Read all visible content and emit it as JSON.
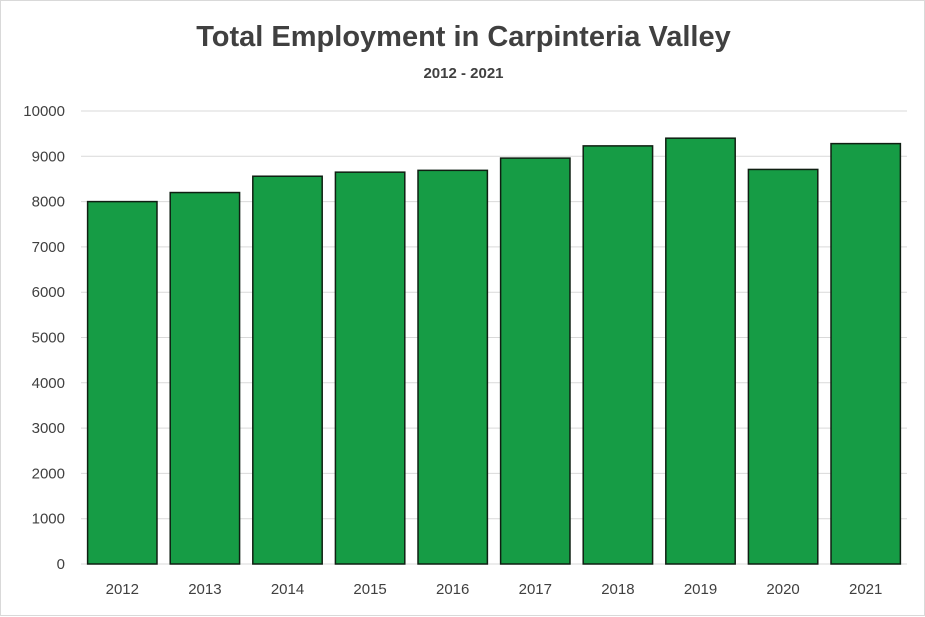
{
  "chart_data": {
    "type": "bar",
    "title": "Total Employment in Carpinteria Valley",
    "subtitle": "2012 - 2021",
    "xlabel": "",
    "ylabel": "",
    "categories": [
      "2012",
      "2013",
      "2014",
      "2015",
      "2016",
      "2017",
      "2018",
      "2019",
      "2020",
      "2021"
    ],
    "values": [
      8000,
      8200,
      8560,
      8650,
      8690,
      8960,
      9230,
      9400,
      8710,
      9280
    ],
    "ylim": [
      0,
      10000
    ],
    "yticks": [
      "0",
      "1000",
      "2000",
      "3000",
      "4000",
      "5000",
      "6000",
      "7000",
      "8000",
      "9000",
      "10000"
    ],
    "grid": true,
    "legend": "none",
    "bar_color": "#169C45",
    "bar_edge_color": "#0f1f12",
    "grid_color": "#d9d9d9",
    "text_color": "#404040"
  }
}
